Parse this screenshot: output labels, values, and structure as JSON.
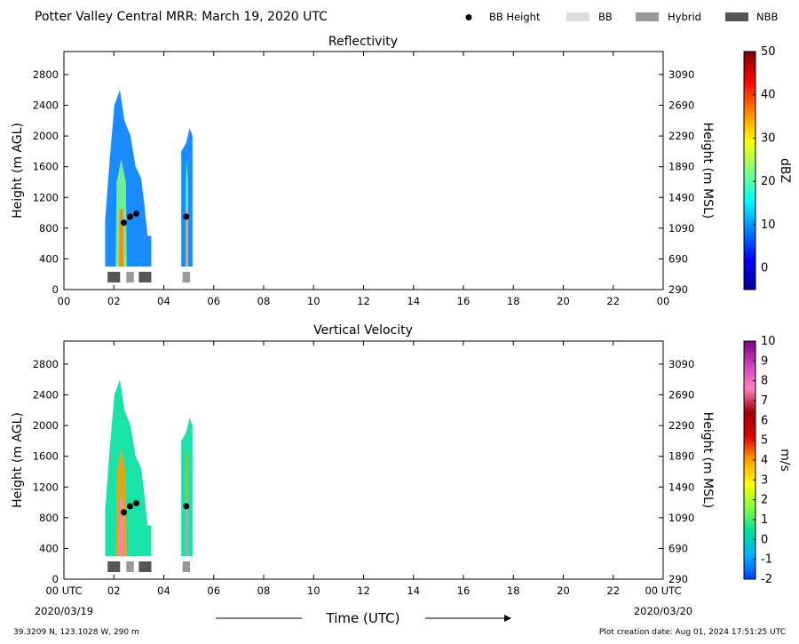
{
  "header": {
    "title": "Potter Valley Central MRR:  March 19, 2020 UTC",
    "legend": [
      {
        "label": "BB Height",
        "marker": "dot",
        "color": "#000000"
      },
      {
        "label": "BB",
        "marker": "rect",
        "color": "#dddddd"
      },
      {
        "label": "Hybrid",
        "marker": "rect",
        "color": "#999999"
      },
      {
        "label": "NBB",
        "marker": "rect",
        "color": "#555555"
      }
    ]
  },
  "footer": {
    "location": "39.3209 N, 123.1028 W, 290 m",
    "created": "Plot creation date: Aug 01, 2024 17:51:25 UTC",
    "time_label": "Time (UTC)",
    "start_date": "2020/03/19",
    "end_date": "2020/03/20"
  },
  "colors": {
    "bb": "#dddddd",
    "hybrid": "#999999",
    "nbb": "#555555",
    "bb_height": "#000000"
  },
  "chart_data": [
    {
      "type": "heatmap",
      "title": "Reflectivity",
      "ylabel": "Height (m AGL)",
      "ylabel_right": "Height (m MSL)",
      "colorbar_label": "dBZ",
      "xlim": [
        0,
        24
      ],
      "ylim": [
        0,
        3100
      ],
      "x_ticks": [
        "00",
        "02",
        "04",
        "06",
        "08",
        "10",
        "12",
        "14",
        "16",
        "18",
        "20",
        "22",
        "00"
      ],
      "y_ticks": [
        0,
        400,
        800,
        1200,
        1600,
        2000,
        2400,
        2800
      ],
      "y_ticks_right": [
        290,
        690,
        1090,
        1490,
        1890,
        2290,
        2690,
        3090
      ],
      "colorbar_range": [
        -5,
        50
      ],
      "colorbar_ticks": [
        0,
        10,
        20,
        30,
        40,
        50
      ],
      "colormap": [
        "#00008f",
        "#0000ff",
        "#0080ff",
        "#00ffff",
        "#80ff80",
        "#ffff00",
        "#ff8000",
        "#ff0000",
        "#800000"
      ],
      "bb_height": [
        {
          "t": 2.4,
          "h": 870
        },
        {
          "t": 2.65,
          "h": 950
        },
        {
          "t": 2.9,
          "h": 990
        },
        {
          "t": 4.9,
          "h": 950
        }
      ],
      "bb_class": [
        {
          "start": 1.75,
          "end": 2.25,
          "class": "NBB"
        },
        {
          "start": 2.5,
          "end": 2.8,
          "class": "Hybrid"
        },
        {
          "start": 3.0,
          "end": 3.5,
          "class": "NBB"
        },
        {
          "start": 4.75,
          "end": 5.05,
          "class": "Hybrid"
        }
      ],
      "precip_periods": [
        {
          "start": 1.65,
          "end": 3.5
        },
        {
          "start": 4.7,
          "end": 5.15
        }
      ]
    },
    {
      "type": "heatmap",
      "title": "Vertical Velocity",
      "ylabel": "Height (m AGL)",
      "ylabel_right": "Height (m MSL)",
      "colorbar_label": "m/s",
      "xlim": [
        0,
        24
      ],
      "ylim": [
        0,
        3100
      ],
      "x_ticks": [
        "00 UTC",
        "02",
        "04",
        "06",
        "08",
        "10",
        "12",
        "14",
        "16",
        "18",
        "20",
        "22",
        "00 UTC"
      ],
      "y_ticks": [
        0,
        400,
        800,
        1200,
        1600,
        2000,
        2400,
        2800
      ],
      "y_ticks_right": [
        290,
        690,
        1090,
        1490,
        1890,
        2290,
        2690,
        3090
      ],
      "colorbar_range": [
        -2,
        10
      ],
      "colorbar_ticks": [
        -2,
        -1,
        0,
        1,
        2,
        3,
        4,
        5,
        6,
        7,
        8,
        9,
        10
      ],
      "colormap": [
        "#0040ff",
        "#00b0ff",
        "#00e0a0",
        "#80ff40",
        "#ffff00",
        "#ffa000",
        "#e00000",
        "#a00000",
        "#ff80c0",
        "#d040c0",
        "#800080"
      ],
      "bb_height": [
        {
          "t": 2.4,
          "h": 870
        },
        {
          "t": 2.65,
          "h": 950
        },
        {
          "t": 2.9,
          "h": 990
        },
        {
          "t": 4.9,
          "h": 950
        }
      ],
      "bb_class": [
        {
          "start": 1.75,
          "end": 2.25,
          "class": "NBB"
        },
        {
          "start": 2.5,
          "end": 2.8,
          "class": "Hybrid"
        },
        {
          "start": 3.0,
          "end": 3.5,
          "class": "NBB"
        },
        {
          "start": 4.75,
          "end": 5.05,
          "class": "Hybrid"
        }
      ],
      "precip_periods": [
        {
          "start": 1.65,
          "end": 3.5
        },
        {
          "start": 4.7,
          "end": 5.15
        }
      ]
    }
  ]
}
